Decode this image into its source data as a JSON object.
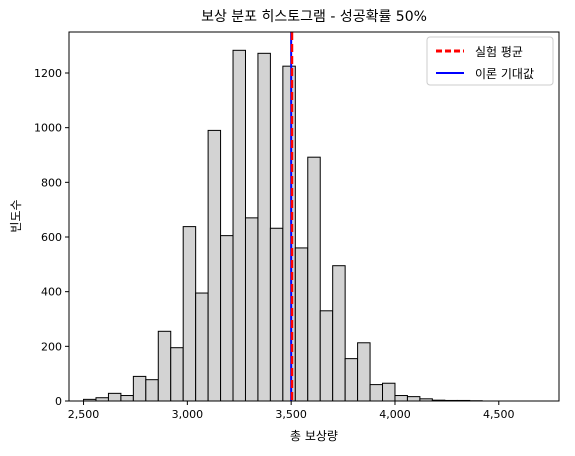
{
  "chart_data": {
    "type": "bar",
    "title": "보상 분포 히스토그램 - 성공확률 50%",
    "xlabel": "총 보상량",
    "ylabel": "빈도수",
    "xlim": [
      2430,
      4790
    ],
    "ylim": [
      0,
      1350
    ],
    "xticks": [
      2500,
      3000,
      3500,
      4000,
      4500
    ],
    "xtick_labels": [
      "2,500",
      "3,000",
      "3,500",
      "4,000",
      "4,500"
    ],
    "yticks": [
      0,
      200,
      400,
      600,
      800,
      1000,
      1200
    ],
    "ytick_labels": [
      "0",
      "200",
      "400",
      "600",
      "800",
      "1000",
      "1200"
    ],
    "bin_width": 60,
    "bin_start": 2500,
    "counts": [
      6,
      12,
      28,
      20,
      90,
      78,
      255,
      195,
      638,
      395,
      990,
      605,
      1283,
      670,
      1272,
      632,
      1225,
      560,
      892,
      330,
      495,
      155,
      213,
      60,
      65,
      20,
      16,
      8,
      3,
      2,
      2,
      1
    ],
    "bar_color": "#d3d3d3",
    "edge_color": "#000000",
    "lines": [
      {
        "name": "실험 평균",
        "x": 3504,
        "color": "#ff0000",
        "style": "dashed"
      },
      {
        "name": "이론 기대값",
        "x": 3500,
        "color": "#0000ff",
        "style": "solid"
      }
    ],
    "legend_position": "top-right",
    "grid": false
  }
}
